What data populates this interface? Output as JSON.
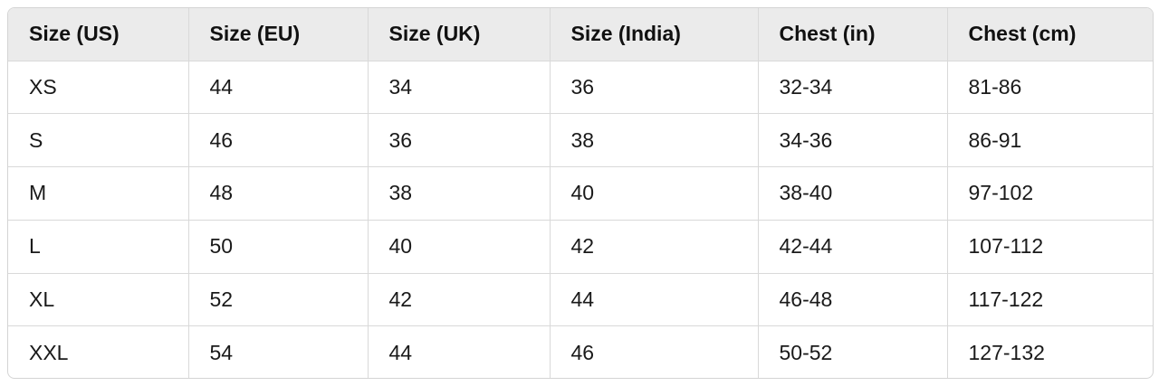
{
  "table": {
    "columns": [
      "Size (US)",
      "Size (EU)",
      "Size (UK)",
      "Size (India)",
      "Chest (in)",
      "Chest (cm)"
    ],
    "rows": [
      [
        "XS",
        "44",
        "34",
        "36",
        "32-34",
        "81-86"
      ],
      [
        "S",
        "46",
        "36",
        "38",
        "34-36",
        "86-91"
      ],
      [
        "M",
        "48",
        "38",
        "40",
        "38-40",
        "97-102"
      ],
      [
        "L",
        "50",
        "40",
        "42",
        "42-44",
        "107-112"
      ],
      [
        "XL",
        "52",
        "42",
        "44",
        "46-48",
        "117-122"
      ],
      [
        "XXL",
        "54",
        "44",
        "46",
        "50-52",
        "127-132"
      ]
    ]
  },
  "colors": {
    "header_background": "#ebebeb",
    "border": "#d9d9d9",
    "text": "#111111"
  }
}
